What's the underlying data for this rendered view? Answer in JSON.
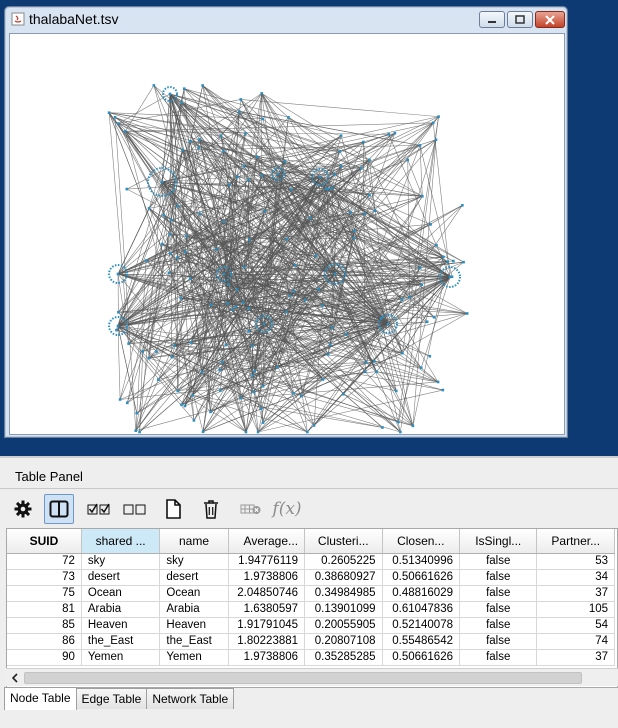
{
  "window": {
    "title": "thalabaNet.tsv",
    "buttons": {
      "minimize_icon": "minimize-icon",
      "maximize_icon": "maximize-icon",
      "close_icon": "close-icon"
    }
  },
  "colors": {
    "desktop": "#0d3a73",
    "node": "#2a8fc0",
    "edge": "#555555",
    "selected_header": "#cde8f6"
  },
  "panel": {
    "title": "Table Panel",
    "toolbar": {
      "icons": [
        "gear-icon",
        "split-view-icon",
        "check-all-icon",
        "uncheck-all-icon",
        "new-column-icon",
        "delete-icon",
        "delete-table-icon",
        "function-builder-icon"
      ],
      "function_label": "f(x)"
    },
    "table": {
      "columns": [
        "SUID",
        "shared ...",
        "name",
        "Average...",
        "Clusteri...",
        "Closen...",
        "IsSingl...",
        "Partner..."
      ],
      "rows": [
        [
          "72",
          "sky",
          "sky",
          "1.94776119",
          "0.2605225",
          "0.51340996",
          "false",
          "53"
        ],
        [
          "73",
          "desert",
          "desert",
          "1.9738806",
          "0.38680927",
          "0.50661626",
          "false",
          "34"
        ],
        [
          "75",
          "Ocean",
          "Ocean",
          "2.04850746",
          "0.34984985",
          "0.48816029",
          "false",
          "37"
        ],
        [
          "81",
          "Arabia",
          "Arabia",
          "1.6380597",
          "0.13901099",
          "0.61047836",
          "false",
          "105"
        ],
        [
          "85",
          "Heaven",
          "Heaven",
          "1.91791045",
          "0.20055905",
          "0.52140078",
          "false",
          "54"
        ],
        [
          "86",
          "the_East",
          "the_East",
          "1.80223881",
          "0.20807108",
          "0.55486542",
          "false",
          "74"
        ],
        [
          "90",
          "Yemen",
          "Yemen",
          "1.9738806",
          "0.35285285",
          "0.50661626",
          "false",
          "37"
        ]
      ]
    },
    "tabs": [
      "Node Table",
      "Edge Table",
      "Network Table"
    ],
    "active_tab": "Node Table"
  }
}
